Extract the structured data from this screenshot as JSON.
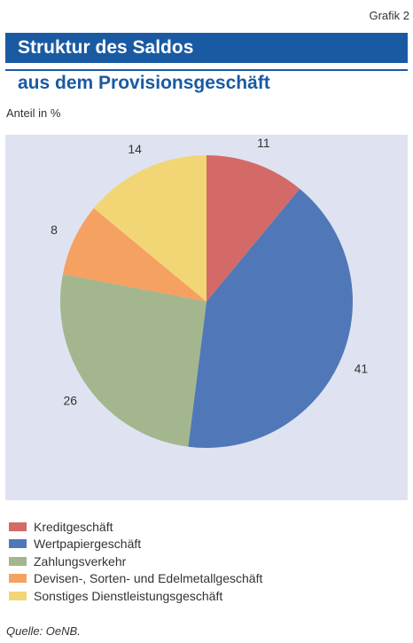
{
  "header": {
    "grafik": "Grafik 2",
    "title_line1": "Struktur des Saldos",
    "title_line2": "aus dem Provisionsgeschäft",
    "subtitle": "Anteil in %"
  },
  "chart_data": {
    "type": "pie",
    "title": "Struktur des Saldos aus dem Provisionsgeschäft",
    "unit": "Anteil in %",
    "slices": [
      {
        "label": "Kreditgeschäft",
        "value": 11,
        "color": "#d46a68"
      },
      {
        "label": "Wertpapiergeschäft",
        "value": 41,
        "color": "#5078b8"
      },
      {
        "label": "Zahlungsverkehr",
        "value": 26,
        "color": "#a3b68e"
      },
      {
        "label": "Devisen-, Sorten- und Edelmetallgeschäft",
        "value": 8,
        "color": "#f5a162"
      },
      {
        "label": "Sonstiges Dienstleistungsgeschäft",
        "value": 14,
        "color": "#f2d675"
      }
    ],
    "legend_position": "bottom",
    "background": "#dfe3f1"
  },
  "footer": {
    "source": "Quelle: OeNB."
  }
}
